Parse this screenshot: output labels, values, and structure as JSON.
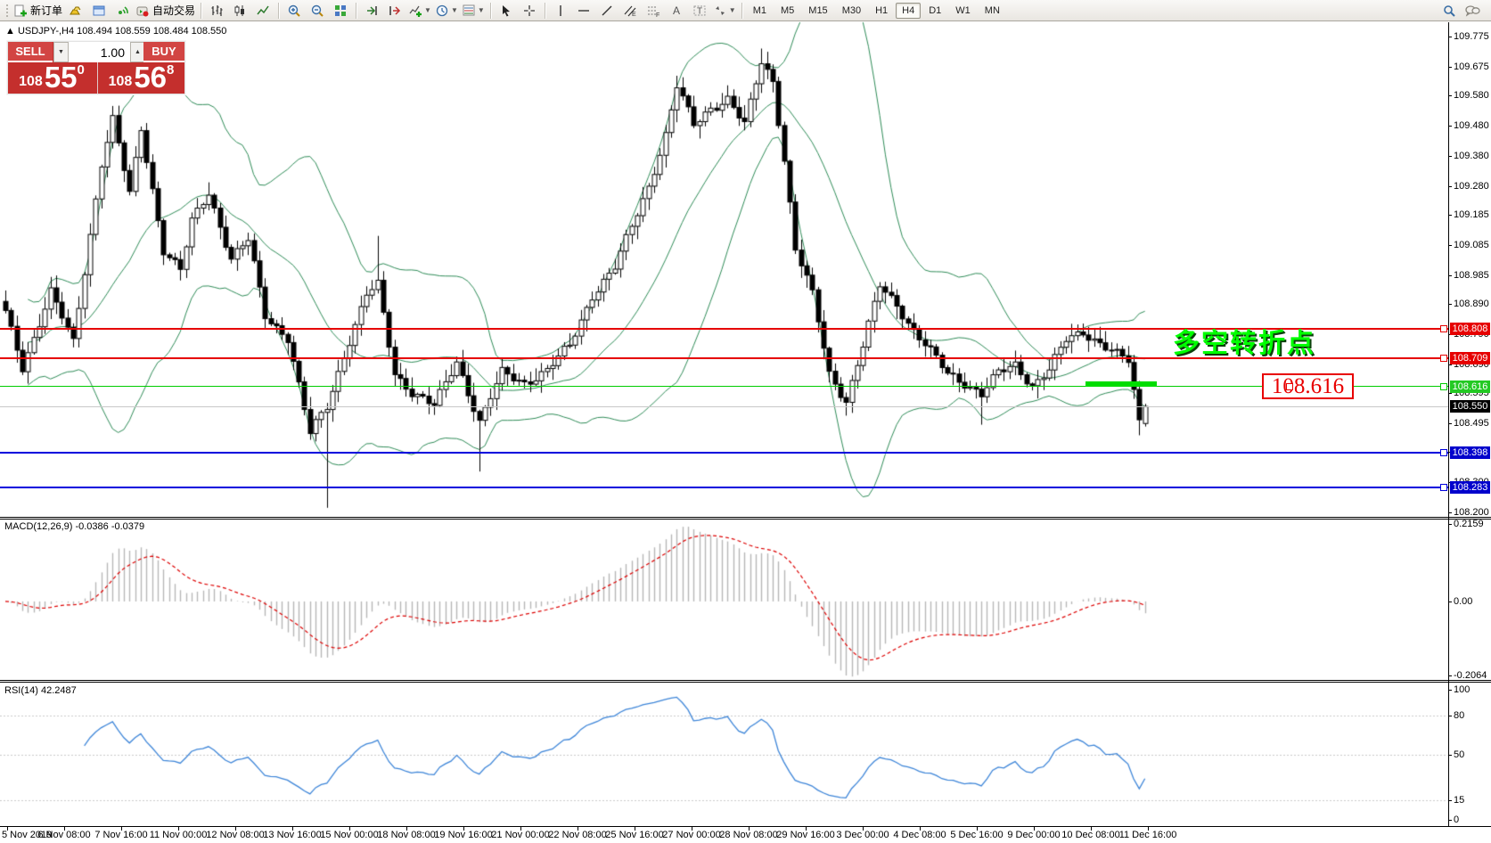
{
  "toolbar": {
    "new_order_label": "新订单",
    "autotrade_label": "自动交易",
    "timeframes": [
      "M1",
      "M5",
      "M15",
      "M30",
      "H1",
      "H4",
      "D1",
      "W1",
      "MN"
    ],
    "active_timeframe": "H4"
  },
  "quote_panel": {
    "sell_label": "SELL",
    "buy_label": "BUY",
    "volume": "1.00",
    "sell_big": "108",
    "sell_main": "55",
    "sell_sup": "0",
    "buy_big": "108",
    "buy_main": "56",
    "buy_sup": "8"
  },
  "chart": {
    "trend_arrow": "▲",
    "title": "USDJPY-,H4  108.494 108.559 108.484 108.550",
    "y_axis_ticks": [
      "109.775",
      "109.675",
      "109.580",
      "109.480",
      "109.380",
      "109.280",
      "109.185",
      "109.085",
      "108.985",
      "108.890",
      "108.790",
      "108.690",
      "108.595",
      "108.495",
      "108.400",
      "108.300",
      "108.200"
    ],
    "x_labels": [
      "5 Nov 2019",
      "6 Nov 08:00",
      "7 Nov 16:00",
      "11 Nov 00:00",
      "12 Nov 08:00",
      "13 Nov 16:00",
      "15 Nov 00:00",
      "18 Nov 08:00",
      "19 Nov 16:00",
      "21 Nov 00:00",
      "22 Nov 08:00",
      "25 Nov 16:00",
      "27 Nov 00:00",
      "28 Nov 08:00",
      "29 Nov 16:00",
      "3 Dec 00:00",
      "4 Dec 08:00",
      "5 Dec 16:00",
      "9 Dec 00:00",
      "10 Dec 08:00",
      "11 Dec 16:00"
    ]
  },
  "macd": {
    "label": "MACD(12,26,9) -0.0386 -0.0379",
    "ticks": [
      {
        "v": 0.2159,
        "t": "0.2159"
      },
      {
        "v": 0.0,
        "t": "0.00"
      },
      {
        "v": -0.2064,
        "t": "-0.2064"
      }
    ]
  },
  "rsi": {
    "label": "RSI(14) 42.2487",
    "ticks": [
      {
        "v": 100,
        "t": "100"
      },
      {
        "v": 80,
        "t": "80"
      },
      {
        "v": 50,
        "t": "50"
      },
      {
        "v": 15,
        "t": "15"
      },
      {
        "v": 0,
        "t": "0"
      }
    ],
    "dashed_levels": [
      80,
      50,
      15
    ]
  },
  "annotations": {
    "turning_point": "多空转折点",
    "price_box": "108.616"
  },
  "chart_data": {
    "type": "candlestick",
    "symbol": "USDJPY-",
    "period": "H4",
    "bar_count": 203,
    "last_bar": {
      "open": 108.494,
      "high": 108.559,
      "low": 108.484,
      "close": 108.55
    },
    "bid": 108.55,
    "ylim_main": [
      108.185,
      109.822
    ],
    "ylim_macd": [
      -0.2188,
      0.2283
    ],
    "ylim_rsi": [
      -4.8,
      105.5
    ],
    "close_anchors": [
      [
        0,
        108.86
      ],
      [
        3,
        108.68
      ],
      [
        8,
        108.93
      ],
      [
        12,
        108.76
      ],
      [
        17,
        109.36
      ],
      [
        19,
        109.5
      ],
      [
        22,
        109.25
      ],
      [
        24,
        109.47
      ],
      [
        28,
        109.07
      ],
      [
        31,
        109.0
      ],
      [
        33,
        109.16
      ],
      [
        36,
        109.26
      ],
      [
        40,
        109.04
      ],
      [
        43,
        109.1
      ],
      [
        46,
        108.85
      ],
      [
        50,
        108.78
      ],
      [
        54,
        108.46
      ],
      [
        57,
        108.55
      ],
      [
        60,
        108.72
      ],
      [
        64,
        108.92
      ],
      [
        66,
        108.95
      ],
      [
        69,
        108.66
      ],
      [
        72,
        108.6
      ],
      [
        76,
        108.55
      ],
      [
        80,
        108.7
      ],
      [
        84,
        108.5
      ],
      [
        88,
        108.66
      ],
      [
        92,
        108.63
      ],
      [
        96,
        108.67
      ],
      [
        100,
        108.75
      ],
      [
        104,
        108.92
      ],
      [
        108,
        109.01
      ],
      [
        112,
        109.19
      ],
      [
        114,
        109.28
      ],
      [
        117,
        109.45
      ],
      [
        119,
        109.61
      ],
      [
        122,
        109.48
      ],
      [
        125,
        109.54
      ],
      [
        128,
        109.57
      ],
      [
        131,
        109.48
      ],
      [
        134,
        109.69
      ],
      [
        136,
        109.63
      ],
      [
        138,
        109.37
      ],
      [
        140,
        109.07
      ],
      [
        143,
        108.92
      ],
      [
        146,
        108.66
      ],
      [
        149,
        108.57
      ],
      [
        152,
        108.75
      ],
      [
        155,
        108.95
      ],
      [
        158,
        108.89
      ],
      [
        161,
        108.8
      ],
      [
        164,
        108.73
      ],
      [
        167,
        108.66
      ],
      [
        170,
        108.63
      ],
      [
        173,
        108.59
      ],
      [
        176,
        108.66
      ],
      [
        179,
        108.69
      ],
      [
        182,
        108.62
      ],
      [
        185,
        108.67
      ],
      [
        188,
        108.77
      ],
      [
        191,
        108.8
      ],
      [
        194,
        108.76
      ],
      [
        197,
        108.72
      ],
      [
        199,
        108.7
      ],
      [
        201,
        108.5
      ],
      [
        202,
        108.55
      ]
    ],
    "high_overrides": {
      "19": 109.545,
      "66": 109.115,
      "119": 109.645,
      "134": 109.735
    },
    "low_overrides": {
      "54": 108.44,
      "57": 108.215,
      "84": 108.335,
      "149": 108.52,
      "173": 108.49,
      "201": 108.455
    },
    "indicators": {
      "bollinger": {
        "period": 20,
        "deviation": 2,
        "color": "#2E8B57"
      },
      "macd": {
        "fast": 12,
        "slow": 26,
        "signal": 9,
        "value": -0.0386,
        "signal_value": -0.0379,
        "hist_color": "#b7b7b7",
        "signal_color": "#dd0000"
      },
      "rsi": {
        "period": 14,
        "value": 42.2487,
        "color": "#3d85d8"
      }
    },
    "levels": [
      {
        "price": 108.808,
        "label": "108.808",
        "line": "#e60000",
        "bg": "#e60000",
        "fg": "#ffffff",
        "thick": 2,
        "marker": true
      },
      {
        "price": 108.709,
        "label": "108.709",
        "line": "#e60000",
        "bg": "#e60000",
        "fg": "#ffffff",
        "thick": 2,
        "marker": true
      },
      {
        "price": 108.616,
        "label": "108.616",
        "line": "#00cc00",
        "bg": "#23c923",
        "fg": "#ffffff",
        "thick": 1,
        "marker": true
      },
      {
        "price": 108.55,
        "label": "108.550",
        "line": "#c8c8c8",
        "bg": "#000000",
        "fg": "#ffffff",
        "thick": 1,
        "marker": false
      },
      {
        "price": 108.398,
        "label": "108.398",
        "line": "#0000dd",
        "bg": "#0000cc",
        "fg": "#ffffff",
        "thick": 2,
        "marker": true
      },
      {
        "price": 108.283,
        "label": "108.283",
        "line": "#0000dd",
        "bg": "#0000cc",
        "fg": "#ffffff",
        "thick": 2,
        "marker": true
      }
    ]
  }
}
